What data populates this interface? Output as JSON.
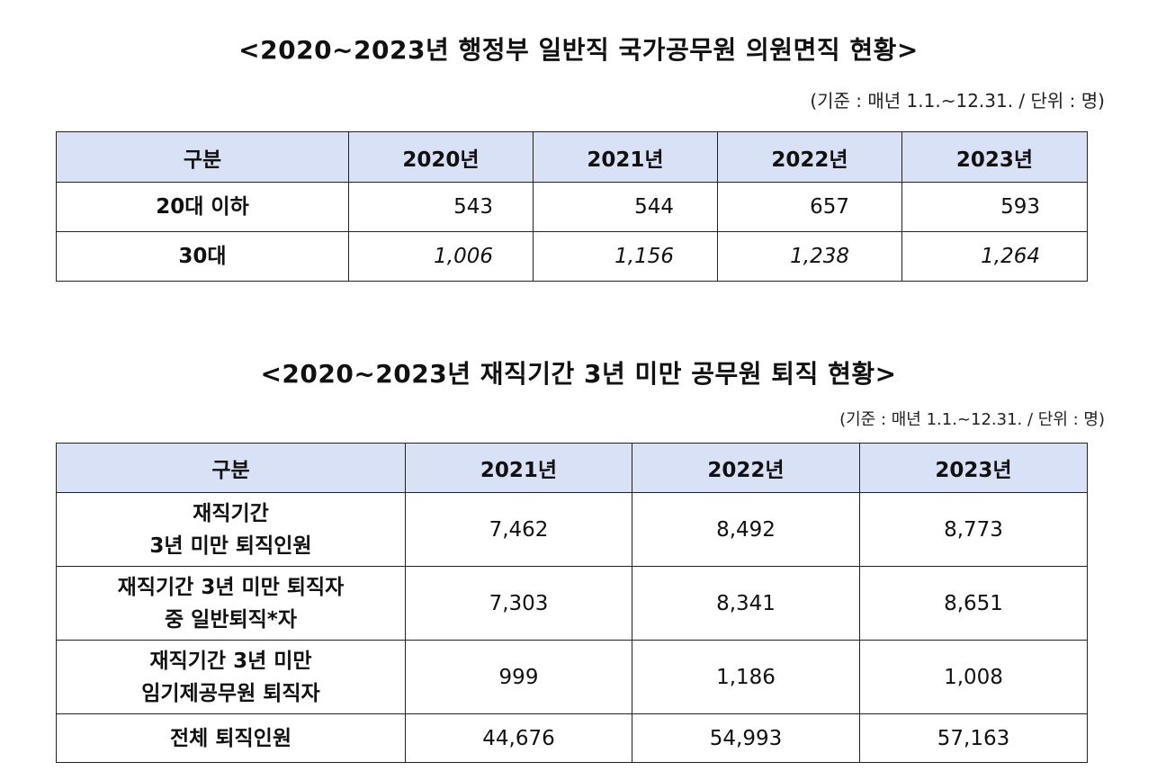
{
  "table1": {
    "title": "<2020~2023년 행정부 일반직 국가공무원 의원면직 현황>",
    "unit_note": "(기준 : 매년 1.1.~12.31. / 단위 : 명)",
    "headers": [
      "구분",
      "2020년",
      "2021년",
      "2022년",
      "2023년"
    ],
    "rows": [
      {
        "label": "20대 이하",
        "values": [
          "543",
          "544",
          "657",
          "593"
        ]
      },
      {
        "label": "30대",
        "values": [
          "1,006",
          "1,156",
          "1,238",
          "1,264"
        ]
      }
    ]
  },
  "table2": {
    "title": "<2020~2023년 재직기간 3년 미만 공무원 퇴직 현황>",
    "unit_note": "(기준 : 매년 1.1.~12.31. / 단위 : 명)",
    "headers": [
      "구분",
      "2021년",
      "2022년",
      "2023년"
    ],
    "rows": [
      {
        "label_line1": "재직기간",
        "label_line2": "3년 미만 퇴직인원",
        "values": [
          "7,462",
          "8,492",
          "8,773"
        ]
      },
      {
        "label_line1": "재직기간 3년 미만 퇴직자",
        "label_line2": "중 일반퇴직*자",
        "values": [
          "7,303",
          "8,341",
          "8,651"
        ]
      },
      {
        "label_line1": "재직기간 3년 미만",
        "label_line2": "임기제공무원 퇴직자",
        "values": [
          "999",
          "1,186",
          "1,008"
        ]
      },
      {
        "label_line1": "전체 퇴직인원",
        "label_line2": "",
        "values": [
          "44,676",
          "54,993",
          "57,163"
        ]
      }
    ]
  }
}
